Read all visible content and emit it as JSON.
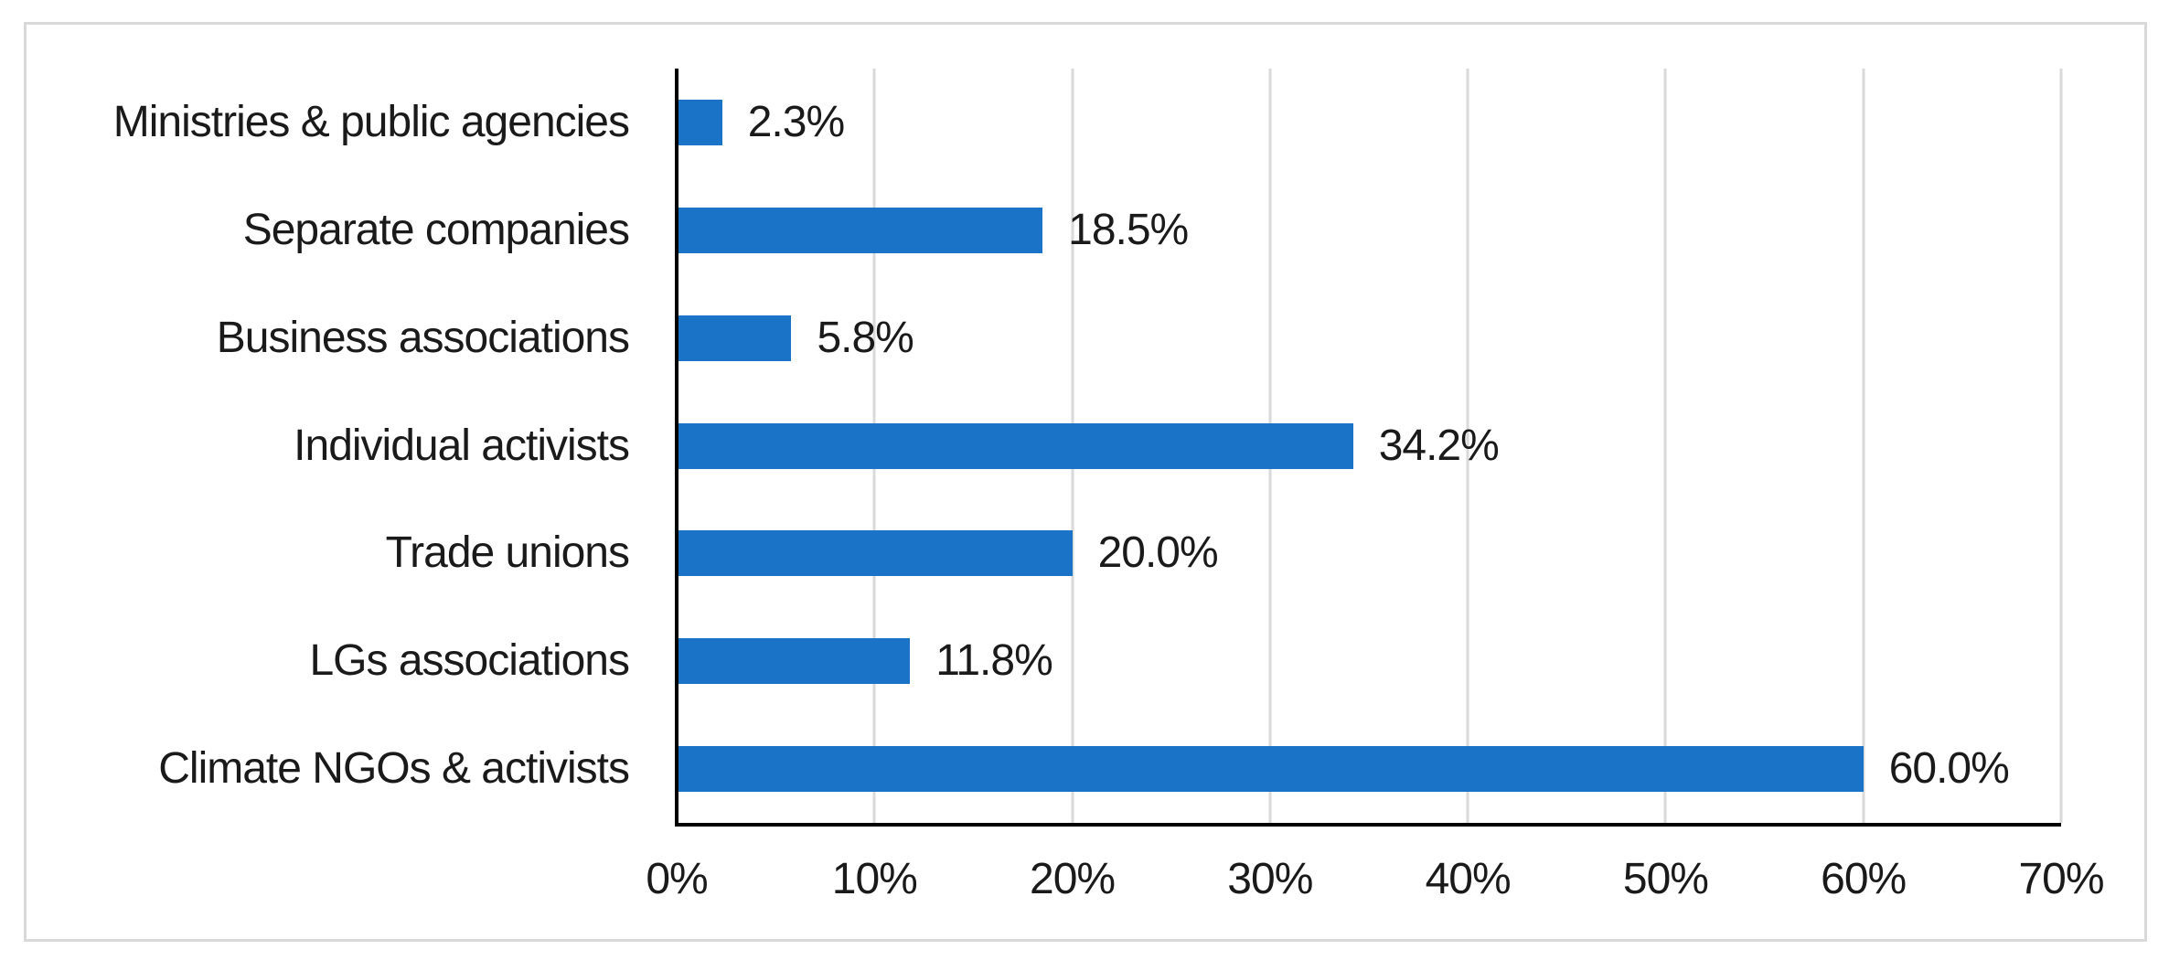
{
  "chart_data": {
    "type": "bar",
    "orientation": "horizontal",
    "title": "",
    "xlabel": "",
    "ylabel": "",
    "categories": [
      "Ministries & public agencies",
      "Separate companies",
      "Business associations",
      "Individual activists",
      "Trade unions",
      "LGs associations",
      "Climate NGOs & activists"
    ],
    "values": [
      2.3,
      18.5,
      5.8,
      34.2,
      20.0,
      11.8,
      60.0
    ],
    "data_labels": [
      "2.3%",
      "18.5%",
      "5.8%",
      "34.2%",
      "20.0%",
      "11.8%",
      "60.0%"
    ],
    "x_ticks": [
      "0%",
      "10%",
      "20%",
      "30%",
      "40%",
      "50%",
      "60%",
      "70%"
    ],
    "x_tick_values": [
      0,
      10,
      20,
      30,
      40,
      50,
      60,
      70
    ],
    "xlim": [
      0,
      70
    ],
    "grid": true,
    "legend_position": "none",
    "colors": {
      "bar": "#1B73C8",
      "gridline": "#D9D9D9",
      "axis_line": "#000000",
      "text": "#1a1a1a",
      "chart_border": "#D9D9D9",
      "background": "#FFFFFF"
    }
  }
}
